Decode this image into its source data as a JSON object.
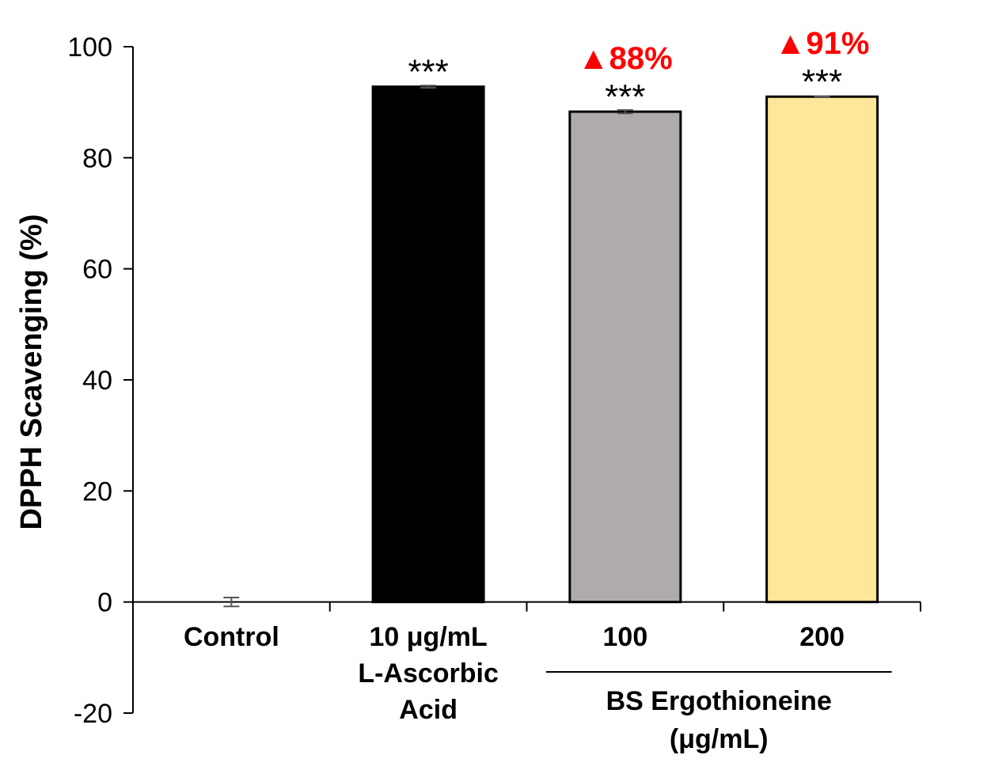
{
  "chart_data": {
    "type": "bar",
    "ylabel": "DPPH Scavenging (%)",
    "xlabel": "",
    "ylim": [
      -20,
      100
    ],
    "yticks": [
      -20,
      0,
      20,
      40,
      60,
      80,
      100
    ],
    "categories": [
      [
        "Control"
      ],
      [
        "10 μg/mL",
        "L-Ascorbic",
        "Acid"
      ],
      [
        "100"
      ],
      [
        "200"
      ]
    ],
    "values": [
      0,
      92.8,
      88.3,
      91.0
    ],
    "errors": [
      0.8,
      0.2,
      0.3,
      0.1
    ],
    "bar_colors": [
      "#ffffff",
      "#000000",
      "#afabab",
      "#ffe699"
    ],
    "significance": [
      "",
      "***",
      "***",
      "***"
    ],
    "percent_labels": [
      "",
      "",
      "▲88%",
      "▲91%"
    ],
    "percent_color": "#ff0000",
    "group": {
      "label_lines": [
        "BS Ergothioneine",
        "(μg/mL)"
      ],
      "categories": [
        2,
        3
      ]
    },
    "grid": false,
    "legend": "none"
  }
}
